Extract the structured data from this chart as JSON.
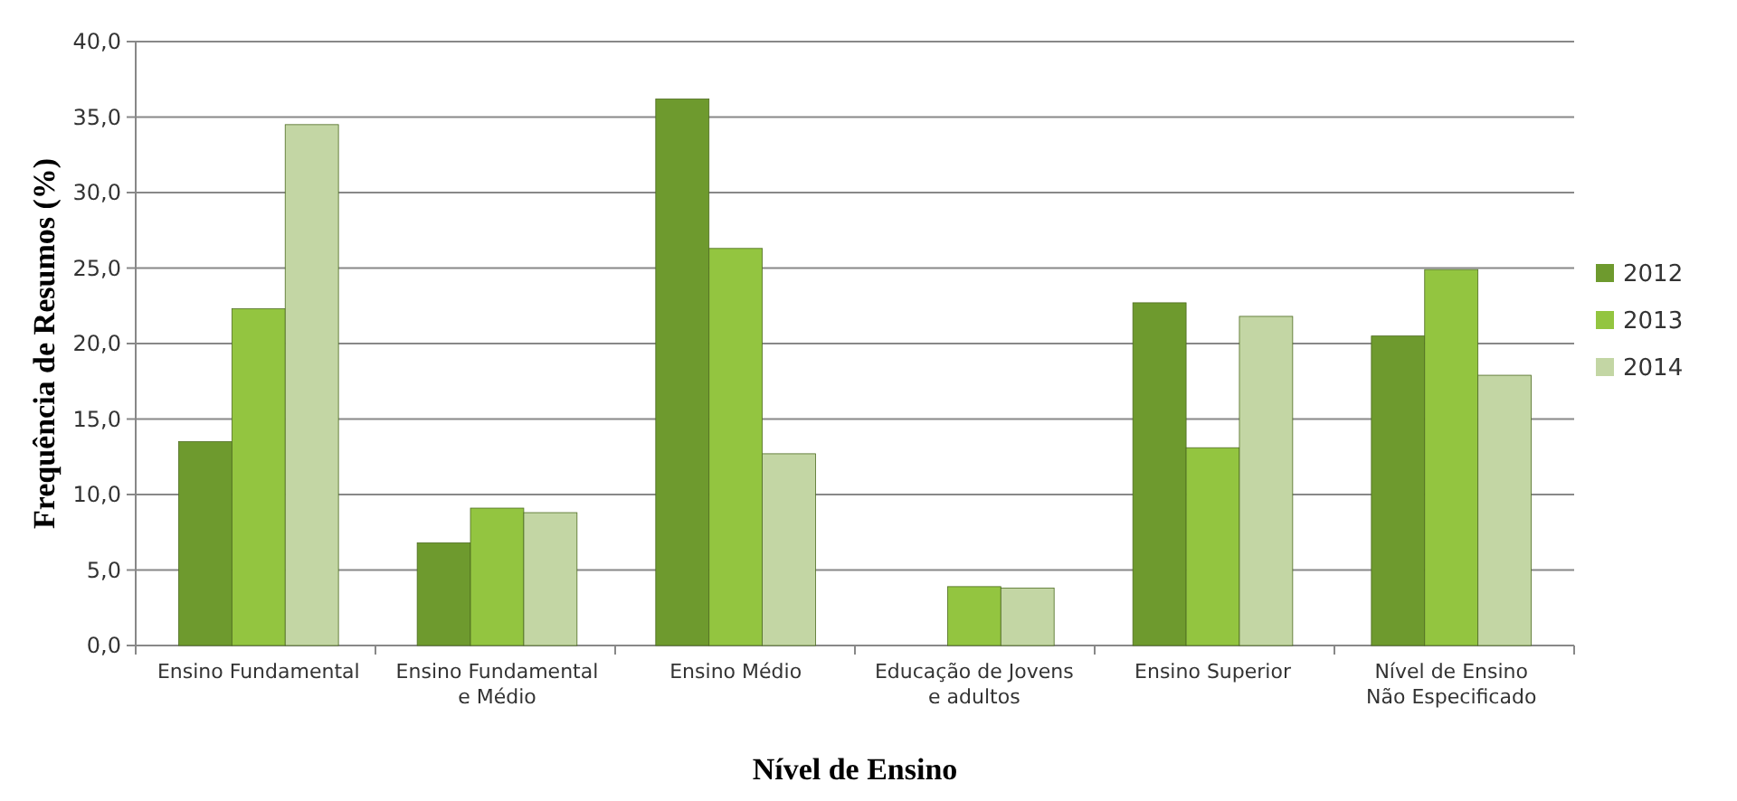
{
  "chart_data": {
    "type": "bar",
    "xlabel": "Nível de Ensino",
    "ylabel": "Frequência de Resumos (%)",
    "categories": [
      "Ensino Fundamental",
      "Ensino Fundamental e Médio",
      "Ensino Médio",
      "Educação de Jovens e adultos",
      "Ensino Superior",
      "Nível de Ensino Não Especificado"
    ],
    "series": [
      {
        "name": "2012",
        "color": "#6e9a2e",
        "values": [
          13.5,
          6.8,
          36.2,
          null,
          22.7,
          20.5
        ]
      },
      {
        "name": "2013",
        "color": "#93c540",
        "values": [
          22.3,
          9.1,
          26.3,
          3.9,
          13.1,
          24.9
        ]
      },
      {
        "name": "2014",
        "color": "#c3d6a4",
        "values": [
          34.5,
          8.8,
          12.7,
          3.8,
          21.8,
          17.9
        ]
      }
    ],
    "ylim": [
      0,
      40
    ],
    "yticks": [
      {
        "value": 0,
        "label": "0,0"
      },
      {
        "value": 5,
        "label": "5,0"
      },
      {
        "value": 10,
        "label": "10,0"
      },
      {
        "value": 15,
        "label": "15,0"
      },
      {
        "value": 20,
        "label": "20,0"
      },
      {
        "value": 25,
        "label": "25,0"
      },
      {
        "value": 30,
        "label": "30,0"
      },
      {
        "value": 35,
        "label": "35,0"
      },
      {
        "value": 40,
        "label": "40,0"
      }
    ],
    "grid": "y",
    "legend": "right"
  }
}
